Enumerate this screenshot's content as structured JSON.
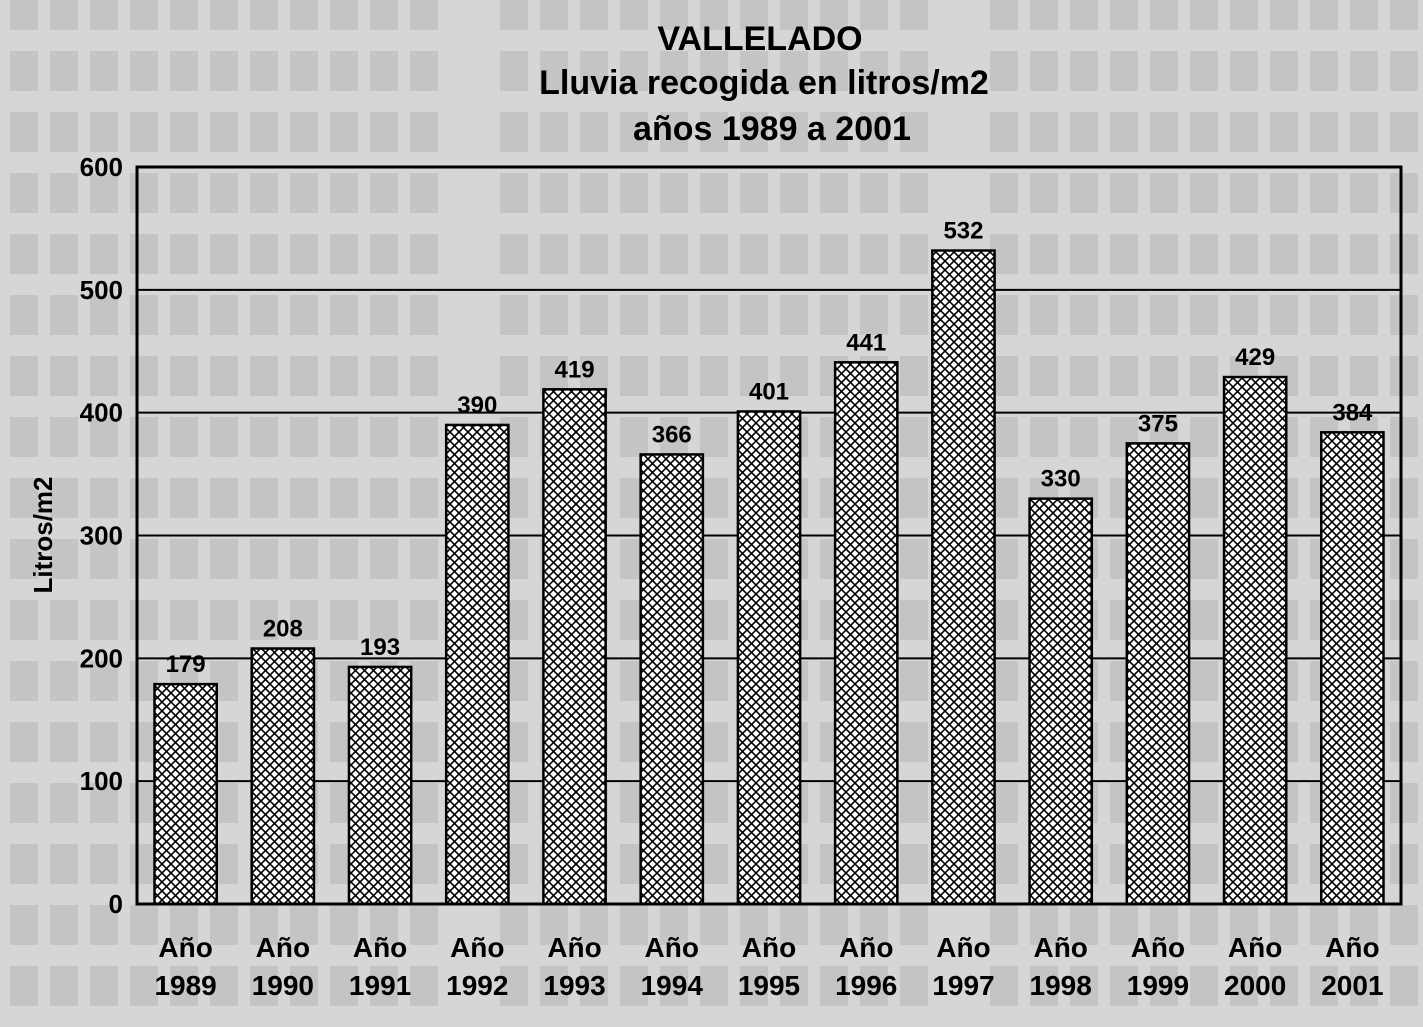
{
  "chart_data": {
    "type": "bar",
    "title": [
      "VALLELADO",
      "Lluvia recogida en litros/m2",
      "años 1989 a 2001"
    ],
    "ylabel": "Litros/m2",
    "xlabel": "",
    "categories": [
      [
        "Año",
        "1989"
      ],
      [
        "Año",
        "1990"
      ],
      [
        "Año",
        "1991"
      ],
      [
        "Año",
        "1992"
      ],
      [
        "Año",
        "1993"
      ],
      [
        "Año",
        "1994"
      ],
      [
        "Año",
        "1995"
      ],
      [
        "Año",
        "1996"
      ],
      [
        "Año",
        "1997"
      ],
      [
        "Año",
        "1998"
      ],
      [
        "Año",
        "1999"
      ],
      [
        "Año",
        "2000"
      ],
      [
        "Año",
        "2001"
      ]
    ],
    "values": [
      179,
      208,
      193,
      390,
      419,
      366,
      401,
      441,
      532,
      330,
      375,
      429,
      384
    ],
    "ylim": [
      0,
      600
    ],
    "yticks": [
      0,
      100,
      200,
      300,
      400,
      500,
      600
    ],
    "grid": true,
    "legend": "none",
    "bar_fill": "crosshatch",
    "colors": {
      "bar_fill": "#ffffff",
      "hatch": "#000000",
      "background": "#d6d6d6",
      "ink": "#000000"
    }
  }
}
